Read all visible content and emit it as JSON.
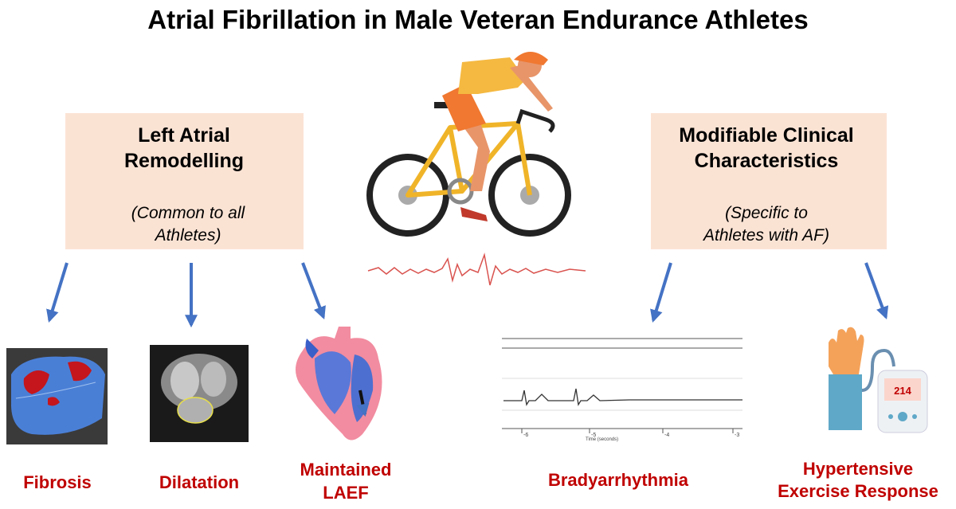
{
  "title": "Atrial Fibrillation in Male Veteran Endurance Athletes",
  "left_box": {
    "title_lines": [
      "Left Atrial",
      "Remodelling"
    ],
    "subtitle_lines": [
      "(Common to all",
      "Athletes)"
    ]
  },
  "right_box": {
    "title_lines": [
      "Modifiable Clinical",
      "Characteristics"
    ],
    "subtitle_lines": [
      "(Specific to",
      "Athletes with AF)"
    ]
  },
  "items": [
    {
      "label_lines": [
        "Fibrosis"
      ]
    },
    {
      "label_lines": [
        "Dilatation"
      ]
    },
    {
      "label_lines": [
        "Maintained",
        "LAEF"
      ]
    },
    {
      "label_lines": [
        "Bradyarrhythmia"
      ]
    },
    {
      "label_lines": [
        "Hypertensive",
        "Exercise Response"
      ]
    }
  ],
  "monitor_reading": "214",
  "ecg_axis": {
    "ticks": [
      "-6",
      "-5",
      "-4",
      "-3"
    ],
    "label": "Time (seconds)"
  }
}
